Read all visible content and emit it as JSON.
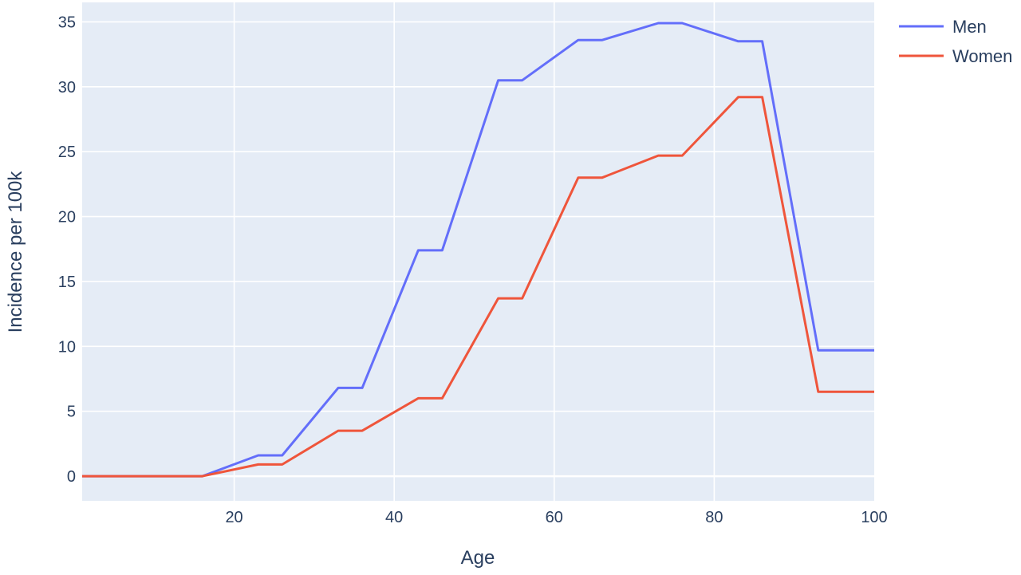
{
  "chart_data": {
    "type": "line",
    "xlabel": "Age",
    "ylabel": "Incidence per 100k",
    "xlim": [
      1,
      100
    ],
    "ylim": [
      -1.9,
      36.5
    ],
    "x_ticks": [
      20,
      40,
      60,
      80,
      100
    ],
    "y_ticks": [
      0,
      5,
      10,
      15,
      20,
      25,
      30,
      35
    ],
    "grid": true,
    "legend_position": "top-right",
    "plot_background": "#e5ecf6",
    "series": [
      {
        "name": "Men",
        "color": "#636efa",
        "points": [
          [
            1,
            0
          ],
          [
            16,
            0
          ],
          [
            23,
            1.6
          ],
          [
            26,
            1.6
          ],
          [
            33,
            6.8
          ],
          [
            36,
            6.8
          ],
          [
            43,
            17.4
          ],
          [
            46,
            17.4
          ],
          [
            53,
            30.5
          ],
          [
            56,
            30.5
          ],
          [
            63,
            33.6
          ],
          [
            66,
            33.6
          ],
          [
            73,
            34.9
          ],
          [
            76,
            34.9
          ],
          [
            83,
            33.5
          ],
          [
            86,
            33.5
          ],
          [
            93,
            9.7
          ],
          [
            100,
            9.7
          ]
        ]
      },
      {
        "name": "Women",
        "color": "#ef553b",
        "points": [
          [
            1,
            0
          ],
          [
            16,
            0
          ],
          [
            23,
            0.9
          ],
          [
            26,
            0.9
          ],
          [
            33,
            3.5
          ],
          [
            36,
            3.5
          ],
          [
            43,
            6.0
          ],
          [
            46,
            6.0
          ],
          [
            53,
            13.7
          ],
          [
            56,
            13.7
          ],
          [
            63,
            23.0
          ],
          [
            66,
            23.0
          ],
          [
            73,
            24.7
          ],
          [
            76,
            24.7
          ],
          [
            83,
            29.2
          ],
          [
            86,
            29.2
          ],
          [
            93,
            6.5
          ],
          [
            100,
            6.5
          ]
        ]
      }
    ]
  }
}
